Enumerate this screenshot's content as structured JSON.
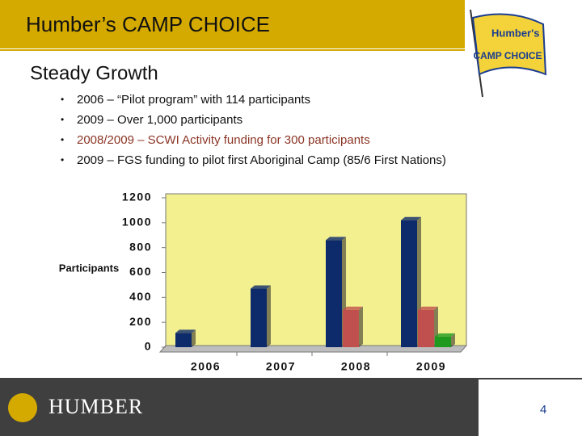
{
  "slide": {
    "title": "Humber’s CAMP CHOICE",
    "subtitle": "Steady Growth",
    "bullets": [
      "2006 – “Pilot program” with 114 participants",
      "2009 – Over 1,000 participants",
      "2008/2009 – SCWI Activity funding for 300 participants",
      "2009 – FGS funding to pilot first  Aboriginal Camp (85/6 First Nations)"
    ],
    "logo": [
      "Humber's",
      "CAMP CHOICE"
    ],
    "footer_logo": "HUMBER",
    "page_number": "4"
  },
  "chart_data": {
    "type": "bar",
    "y_label": "Participants",
    "categories": [
      "2006",
      "2007",
      "2008",
      "2009"
    ],
    "series": [
      {
        "color": "#0d2a6b",
        "values": [
          114,
          470,
          860,
          1020
        ]
      },
      {
        "color": "#c0504d",
        "values": [
          null,
          null,
          300,
          300
        ]
      },
      {
        "color": "#1f9a1f",
        "values": [
          null,
          null,
          null,
          85
        ]
      }
    ],
    "ylim": [
      0,
      1200
    ],
    "yticks": [
      0,
      200,
      400,
      600,
      800,
      1000,
      1200
    ]
  }
}
